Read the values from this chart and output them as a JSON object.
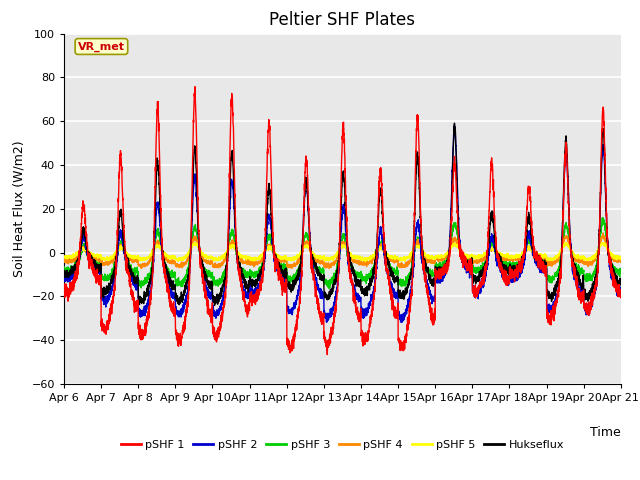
{
  "title": "Peltier SHF Plates",
  "xlabel": "Time",
  "ylabel": "Soil Heat Flux (W/m2)",
  "xlim_start": 0,
  "xlim_end": 15,
  "ylim": [
    -60,
    100
  ],
  "yticks": [
    -60,
    -40,
    -20,
    0,
    20,
    40,
    60,
    80,
    100
  ],
  "xtick_labels": [
    "Apr 6",
    "Apr 7",
    "Apr 8",
    "Apr 9",
    "Apr 10",
    "Apr 11",
    "Apr 12",
    "Apr 13",
    "Apr 14",
    "Apr 15",
    "Apr 16",
    "Apr 17",
    "Apr 18",
    "Apr 19",
    "Apr 20",
    "Apr 21"
  ],
  "series_colors": [
    "#ff0000",
    "#0000cc",
    "#00cc00",
    "#ff8800",
    "#ffff00",
    "#000000"
  ],
  "series_names": [
    "pSHF 1",
    "pSHF 2",
    "pSHF 3",
    "pSHF 4",
    "pSHF 5",
    "Hukseflux"
  ],
  "annotation_text": "VR_met",
  "bg_color": "#e8e8e8",
  "grid_color": "#ffffff",
  "title_fontsize": 12,
  "label_fontsize": 9,
  "tick_fontsize": 8
}
